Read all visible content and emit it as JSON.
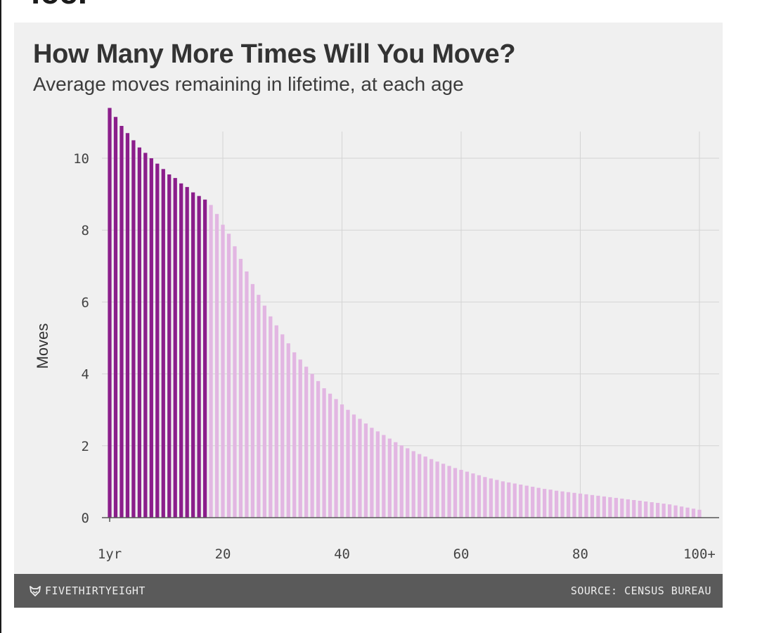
{
  "page_fragment": "ice.",
  "chart_data": {
    "type": "bar",
    "title": "How Many More Times Will You Move?",
    "subtitle": "Average moves remaining in lifetime, at each age",
    "ylabel": "Moves",
    "xlabel": "",
    "ylim": [
      0,
      11.5
    ],
    "yticks": [
      0,
      2,
      4,
      6,
      8,
      10
    ],
    "xticks": [
      {
        "age": 1,
        "label": "1yr"
      },
      {
        "age": 20,
        "label": "20"
      },
      {
        "age": 40,
        "label": "40"
      },
      {
        "age": 60,
        "label": "60"
      },
      {
        "age": 80,
        "label": "80"
      },
      {
        "age": 100,
        "label": "100+"
      }
    ],
    "grid": true,
    "colors": {
      "highlight": "#8b1e8b",
      "base": "#e2b6e2"
    },
    "highlight_ages": [
      1,
      17
    ],
    "x": [
      1,
      2,
      3,
      4,
      5,
      6,
      7,
      8,
      9,
      10,
      11,
      12,
      13,
      14,
      15,
      16,
      17,
      18,
      19,
      20,
      21,
      22,
      23,
      24,
      25,
      26,
      27,
      28,
      29,
      30,
      31,
      32,
      33,
      34,
      35,
      36,
      37,
      38,
      39,
      40,
      41,
      42,
      43,
      44,
      45,
      46,
      47,
      48,
      49,
      50,
      51,
      52,
      53,
      54,
      55,
      56,
      57,
      58,
      59,
      60,
      61,
      62,
      63,
      64,
      65,
      66,
      67,
      68,
      69,
      70,
      71,
      72,
      73,
      74,
      75,
      76,
      77,
      78,
      79,
      80,
      81,
      82,
      83,
      84,
      85,
      86,
      87,
      88,
      89,
      90,
      91,
      92,
      93,
      94,
      95,
      96,
      97,
      98,
      99,
      100
    ],
    "values": [
      11.4,
      11.15,
      10.9,
      10.7,
      10.5,
      10.3,
      10.15,
      10.0,
      9.85,
      9.7,
      9.55,
      9.45,
      9.3,
      9.2,
      9.05,
      8.95,
      8.85,
      8.7,
      8.45,
      8.15,
      7.9,
      7.55,
      7.2,
      6.85,
      6.5,
      6.2,
      5.9,
      5.6,
      5.35,
      5.1,
      4.85,
      4.6,
      4.4,
      4.2,
      4.0,
      3.8,
      3.6,
      3.45,
      3.3,
      3.15,
      3.0,
      2.87,
      2.75,
      2.62,
      2.5,
      2.4,
      2.3,
      2.2,
      2.1,
      2.01,
      1.93,
      1.85,
      1.77,
      1.7,
      1.63,
      1.56,
      1.5,
      1.44,
      1.38,
      1.33,
      1.28,
      1.23,
      1.18,
      1.13,
      1.09,
      1.05,
      1.01,
      0.98,
      0.95,
      0.92,
      0.89,
      0.86,
      0.83,
      0.8,
      0.78,
      0.75,
      0.73,
      0.71,
      0.69,
      0.67,
      0.65,
      0.63,
      0.61,
      0.59,
      0.57,
      0.55,
      0.53,
      0.51,
      0.49,
      0.47,
      0.45,
      0.43,
      0.41,
      0.39,
      0.37,
      0.34,
      0.31,
      0.28,
      0.25,
      0.22
    ]
  },
  "footer": {
    "brand_icon": "fox-icon",
    "brand": "FIVETHIRTYEIGHT",
    "source": "SOURCE: CENSUS BUREAU"
  }
}
